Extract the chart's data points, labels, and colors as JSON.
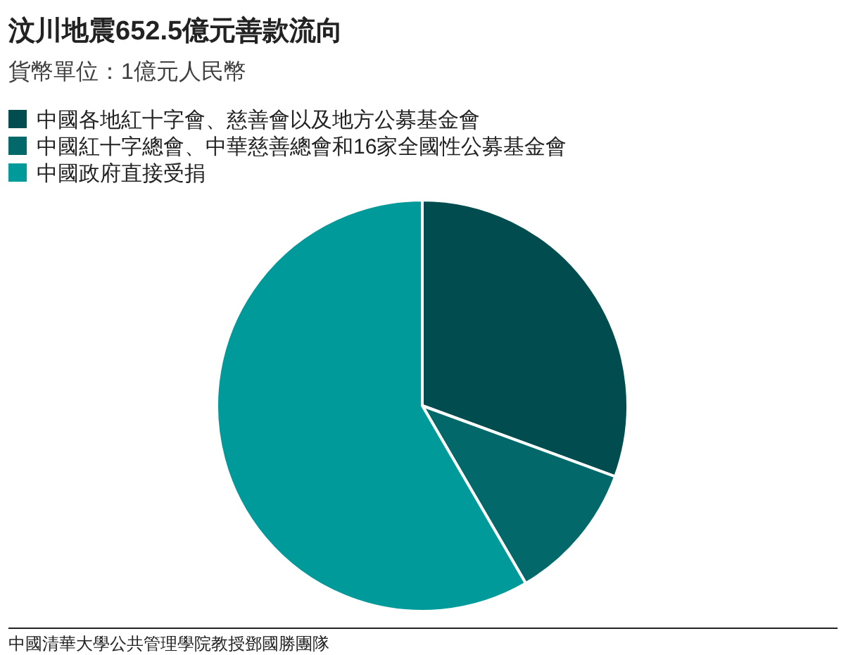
{
  "chart_data": {
    "type": "pie",
    "title": "汶川地震652.5億元善款流向",
    "subtitle": "貨幣單位：1億元人民幣",
    "categories": [
      "中國各地紅十字會、慈善會以及地方公募基金會",
      "中國紅十字總會、中華慈善總會和16家全國性公募基金會",
      "中國政府直接受捐"
    ],
    "values": [
      30.6,
      11.0,
      58.4
    ],
    "colors": [
      "#004c4f",
      "#03686a",
      "#009a9a"
    ],
    "legend": "top left",
    "annotations": [
      "中國清華大學公共管理學院教授鄧國勝團隊"
    ]
  }
}
